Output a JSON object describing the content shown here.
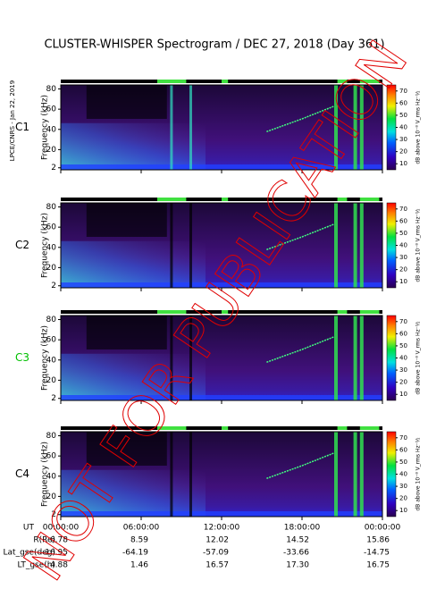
{
  "title": "CLUSTER-WHISPER Spectrogram / DEC 27, 2018 (Day 361)",
  "side_note": "LPCE/CNRS - Jan 22, 2019",
  "watermark": "NOT FOR PUBLICATION",
  "chart_data": [
    {
      "type": "spectrogram",
      "label": "C1",
      "label_color": "#000000",
      "ylabel": "Frequency (kHz)",
      "ylim": [
        0,
        84
      ],
      "yticks": [
        2,
        20,
        40,
        60,
        80
      ],
      "clim": [
        5,
        75
      ],
      "cticks": [
        10,
        20,
        30,
        40,
        50,
        60,
        70
      ],
      "clabel": "dB above 10⁻⁸ V_rms Hz⁻½"
    },
    {
      "type": "spectrogram",
      "label": "C2",
      "label_color": "#000000",
      "ylabel": "Frequency (kHz)",
      "ylim": [
        0,
        84
      ],
      "yticks": [
        2,
        20,
        40,
        60,
        80
      ],
      "clim": [
        5,
        75
      ],
      "cticks": [
        10,
        20,
        30,
        40,
        50,
        60,
        70
      ],
      "clabel": "dB above 10⁻⁸ V_rms Hz⁻½"
    },
    {
      "type": "spectrogram",
      "label": "C3",
      "label_color": "#00c000",
      "ylabel": "Frequency (kHz)",
      "ylim": [
        0,
        84
      ],
      "yticks": [
        2,
        20,
        40,
        60,
        80
      ],
      "clim": [
        5,
        75
      ],
      "cticks": [
        10,
        20,
        30,
        40,
        50,
        60,
        70
      ],
      "clabel": "dB above 10⁻⁸ V_rms Hz⁻½"
    },
    {
      "type": "spectrogram",
      "label": "C4",
      "label_color": "#000000",
      "ylabel": "Frequency (kHz)",
      "ylim": [
        0,
        84
      ],
      "yticks": [
        2,
        20,
        40,
        60,
        80
      ],
      "clim": [
        5,
        75
      ],
      "cticks": [
        10,
        20,
        30,
        40,
        50,
        60,
        70
      ],
      "clabel": "dB above 10⁻⁸ V_rms Hz⁻½",
      "xlabel": "UT",
      "xlim": [
        0,
        24
      ],
      "xticks": [
        {
          "value": 0,
          "label": "00:00:00"
        },
        {
          "value": 6,
          "label": "06:00:00"
        },
        {
          "value": 12,
          "label": "12:00:00"
        },
        {
          "value": 18,
          "label": "18:00:00"
        },
        {
          "value": 24,
          "label": "00:00:00"
        }
      ]
    }
  ],
  "ephemeris": [
    {
      "label": "R(Re)",
      "values": [
        "6.78",
        "8.59",
        "12.02",
        "14.52",
        "15.86"
      ]
    },
    {
      "label": "Lat_gse(deg)",
      "values": [
        "16.95",
        "-64.19",
        "-57.09",
        "-33.66",
        "-14.75"
      ]
    },
    {
      "label": "LT_gse(h)",
      "values": [
        "4.88",
        "1.46",
        "16.57",
        "17.30",
        "16.75"
      ]
    }
  ]
}
